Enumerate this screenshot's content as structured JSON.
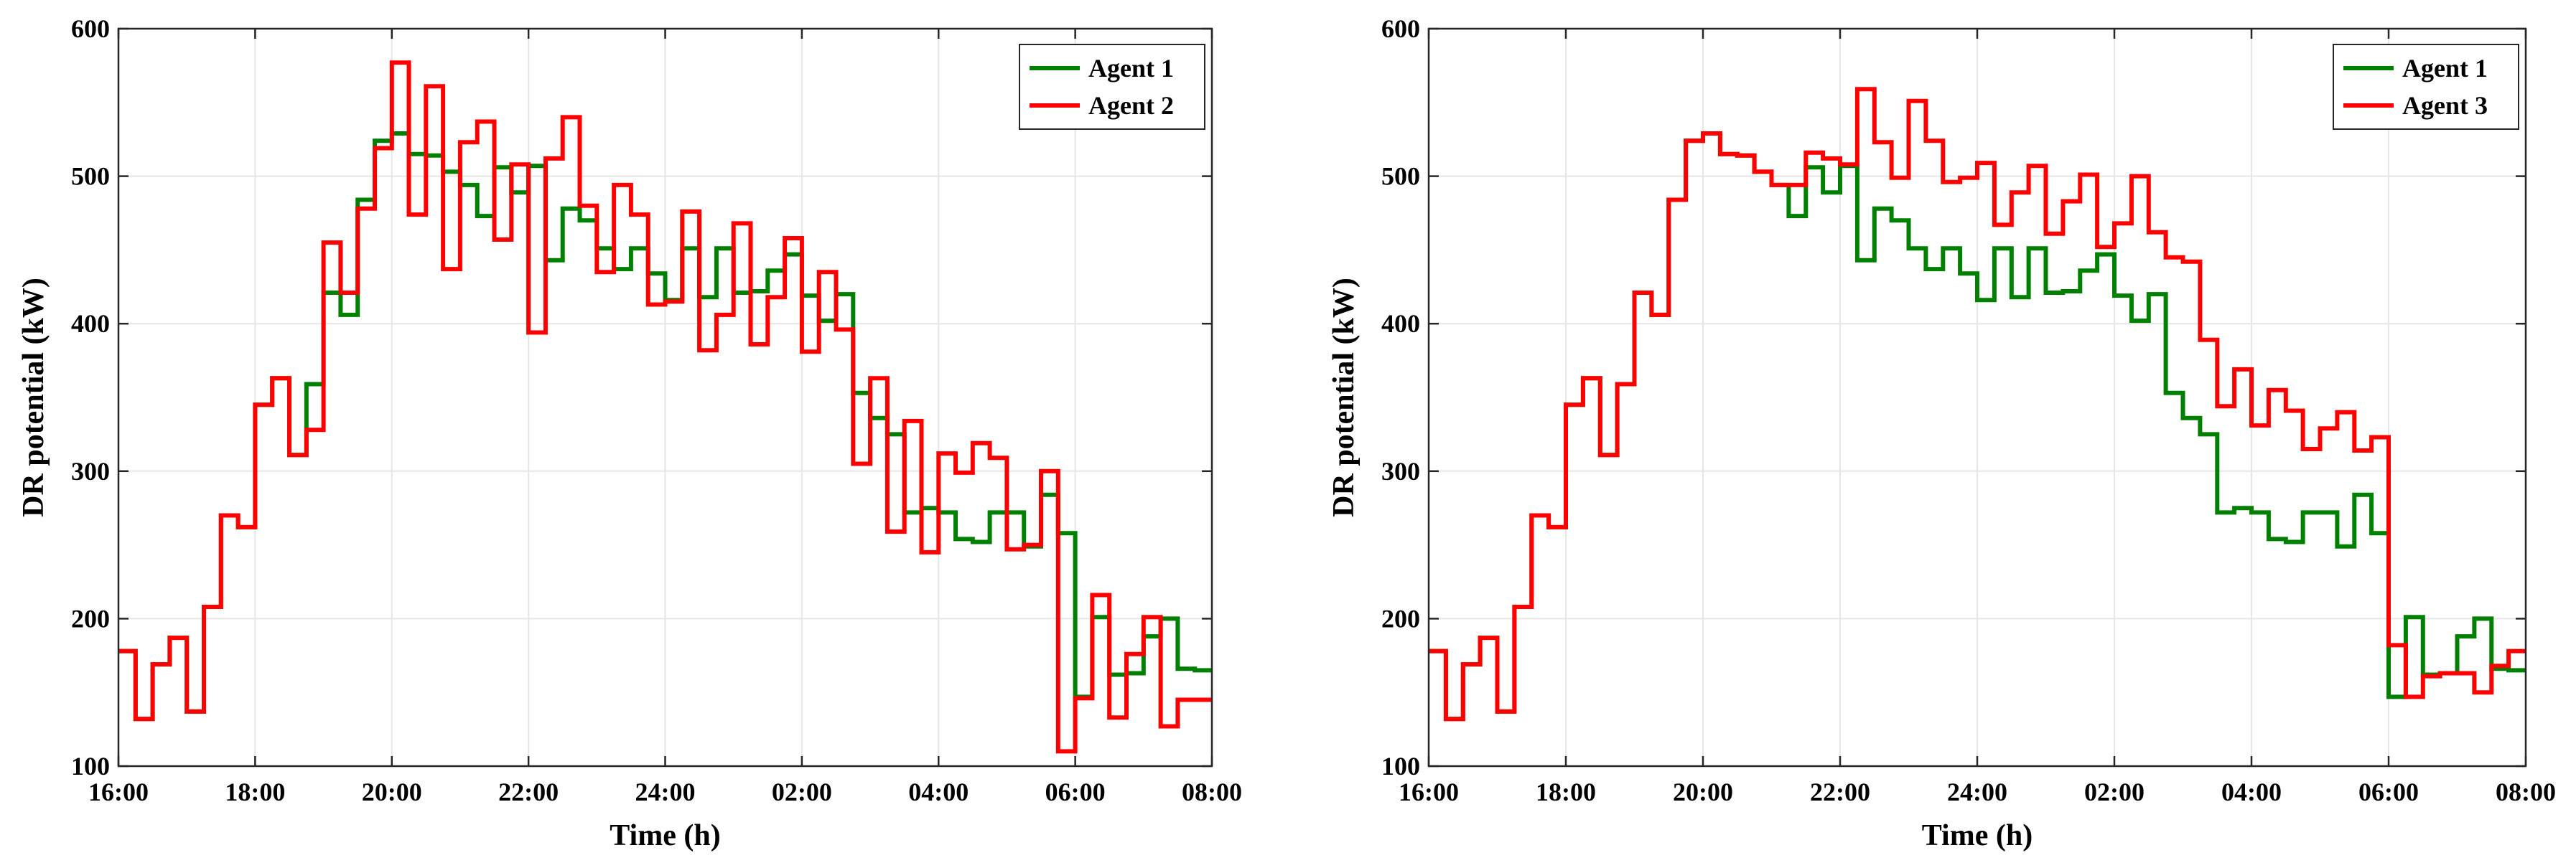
{
  "chart_data": [
    {
      "type": "line",
      "step": true,
      "xlabel": "Time (h)",
      "ylabel": "DR potential (kW)",
      "ylim": [
        100,
        600
      ],
      "yticks": [
        100,
        200,
        300,
        400,
        500,
        600
      ],
      "xlim": [
        0,
        16
      ],
      "xticks": [
        0,
        2,
        4,
        6,
        8,
        10,
        12,
        14,
        16
      ],
      "xtick_labels": [
        "16:00",
        "18:00",
        "20:00",
        "22:00",
        "24:00",
        "02:00",
        "04:00",
        "06:00",
        "08:00"
      ],
      "grid": true,
      "legend_position": "top-right",
      "series": [
        {
          "name": "Agent 1",
          "color": "#008000",
          "values": [
            178,
            132,
            169,
            187,
            137,
            208,
            270,
            262,
            345,
            363,
            311,
            359,
            421,
            406,
            484,
            524,
            529,
            515,
            514,
            503,
            494,
            473,
            506,
            489,
            507,
            443,
            478,
            470,
            451,
            437,
            451,
            434,
            416,
            451,
            418,
            451,
            421,
            422,
            436,
            447,
            419,
            402,
            420,
            353,
            336,
            325,
            272,
            275,
            272,
            254,
            252,
            272,
            272,
            249,
            284,
            258,
            147,
            201,
            162,
            163,
            188,
            200,
            166,
            165
          ]
        },
        {
          "name": "Agent 2",
          "color": "#ff0000",
          "values": [
            178,
            132,
            169,
            187,
            137,
            208,
            270,
            262,
            345,
            363,
            311,
            328,
            455,
            421,
            478,
            519,
            577,
            474,
            561,
            437,
            523,
            537,
            457,
            508,
            394,
            512,
            540,
            480,
            435,
            494,
            474,
            413,
            415,
            476,
            382,
            406,
            468,
            386,
            418,
            458,
            381,
            435,
            396,
            305,
            363,
            259,
            334,
            245,
            312,
            299,
            319,
            309,
            247,
            250,
            300,
            110,
            146,
            216,
            133,
            176,
            201,
            127,
            145,
            145
          ]
        }
      ]
    },
    {
      "type": "line",
      "step": true,
      "xlabel": "Time (h)",
      "ylabel": "DR potential (kW)",
      "ylim": [
        100,
        600
      ],
      "yticks": [
        100,
        200,
        300,
        400,
        500,
        600
      ],
      "xlim": [
        0,
        16
      ],
      "xticks": [
        0,
        2,
        4,
        6,
        8,
        10,
        12,
        14,
        16
      ],
      "xtick_labels": [
        "16:00",
        "18:00",
        "20:00",
        "22:00",
        "24:00",
        "02:00",
        "04:00",
        "06:00",
        "08:00"
      ],
      "grid": true,
      "legend_position": "top-right",
      "series": [
        {
          "name": "Agent 1",
          "color": "#008000",
          "values": [
            178,
            132,
            169,
            187,
            137,
            208,
            270,
            262,
            345,
            363,
            311,
            359,
            421,
            406,
            484,
            524,
            529,
            515,
            514,
            503,
            494,
            473,
            506,
            489,
            507,
            443,
            478,
            470,
            451,
            437,
            451,
            434,
            416,
            451,
            418,
            451,
            421,
            422,
            436,
            447,
            419,
            402,
            420,
            353,
            336,
            325,
            272,
            275,
            272,
            254,
            252,
            272,
            272,
            249,
            284,
            258,
            147,
            201,
            162,
            163,
            188,
            200,
            166,
            165
          ]
        },
        {
          "name": "Agent 3",
          "color": "#ff0000",
          "values": [
            178,
            132,
            169,
            187,
            137,
            208,
            270,
            262,
            345,
            363,
            311,
            359,
            421,
            406,
            484,
            524,
            529,
            515,
            514,
            503,
            494,
            494,
            516,
            512,
            508,
            559,
            523,
            499,
            551,
            524,
            496,
            499,
            509,
            467,
            489,
            507,
            461,
            483,
            501,
            452,
            468,
            500,
            462,
            445,
            442,
            389,
            344,
            369,
            331,
            355,
            341,
            315,
            329,
            340,
            314,
            323,
            182,
            147,
            161,
            163,
            163,
            150,
            168,
            178
          ]
        }
      ]
    }
  ]
}
